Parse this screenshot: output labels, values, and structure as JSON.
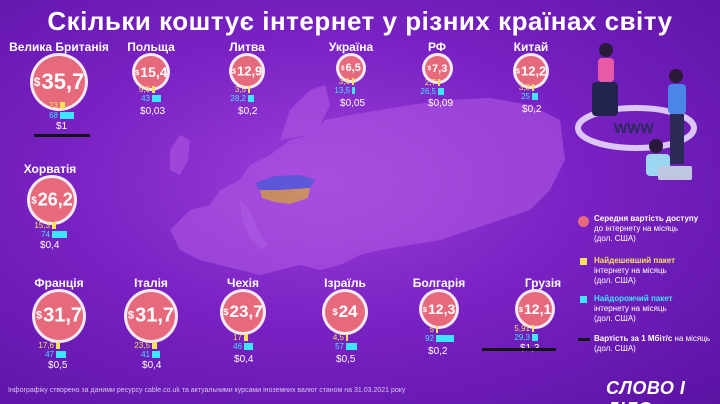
{
  "title": "Скільки коштує інтернет у різних країнах світу",
  "currency_symbol": "$",
  "countries": [
    {
      "name": "Велика Британія",
      "avg": "35,7",
      "min": "23",
      "max": "68",
      "mbps": "1"
    },
    {
      "name": "Польща",
      "avg": "15,4",
      "min": "9,6",
      "max": "43",
      "mbps": "0,03"
    },
    {
      "name": "Литва",
      "avg": "12,9",
      "min": "3,5",
      "max": "28,2",
      "mbps": "0,2"
    },
    {
      "name": "Україна",
      "avg": "6,5",
      "min": "3,6",
      "max": "13,5",
      "mbps": "0,05"
    },
    {
      "name": "РФ",
      "avg": "7,3",
      "min": "2,7",
      "max": "26,5",
      "mbps": "0,09"
    },
    {
      "name": "Китай",
      "avg": "12,2",
      "min": "3,8",
      "max": "25",
      "mbps": "0,2"
    },
    {
      "name": "Хорватія",
      "avg": "26,2",
      "min": "15,3",
      "max": "74",
      "mbps": "0,4"
    },
    {
      "name": "Франція",
      "avg": "31,7",
      "min": "17,6",
      "max": "47",
      "mbps": "0,5"
    },
    {
      "name": "Італія",
      "avg": "31,7",
      "min": "23,5",
      "max": "41",
      "mbps": "0,4"
    },
    {
      "name": "Чехія",
      "avg": "23,7",
      "min": "17",
      "max": "46",
      "mbps": "0,4"
    },
    {
      "name": "Ізраїль",
      "avg": "24",
      "min": "4,5",
      "max": "57",
      "mbps": "0,5"
    },
    {
      "name": "Болгарія",
      "avg": "12,3",
      "min": "5",
      "max": "92",
      "mbps": "0,2"
    },
    {
      "name": "Грузія",
      "avg": "12,1",
      "min": "5,91",
      "max": "29,3",
      "mbps": "1,3"
    }
  ],
  "legend": {
    "avg": {
      "bold": "Середня вартість доступу",
      "rest": "до інтернету на місяць",
      "note": "(дол. США)"
    },
    "min": {
      "bold": "Найдешевший пакет",
      "rest": "інтернету на місяць",
      "note": "(дол. США)"
    },
    "max": {
      "bold": "Найдорожчий пакет",
      "rest": "інтернету на місяць",
      "note": "(дол. США)"
    },
    "mbps": {
      "bold": "Вартість за 1 Мбіт/с",
      "rest": "на місяць",
      "note": "(дол. США)"
    }
  },
  "footer": "Інфографіку створено за даними ресурсу cable.co.uk та актуальними курсами іноземних валют станом на 31.03.2021 року",
  "logo": "СЛОВО І ДІЛО",
  "illustration_text": "WWW",
  "colors": {
    "avg": "#e7697c",
    "min": "#f8e25a",
    "max": "#3de6ff",
    "mbps": "#141414",
    "ukraine_top": "#2f6fe0",
    "ukraine_bottom": "#f5d10a"
  }
}
